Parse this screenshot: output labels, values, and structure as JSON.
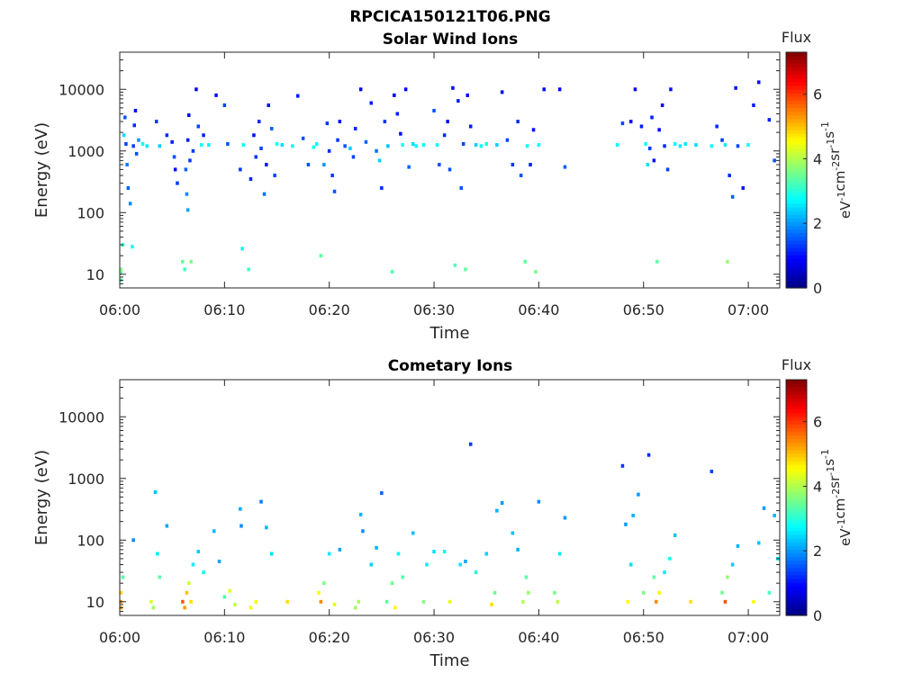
{
  "figure": {
    "title": "RPCICA150121T06.PNG"
  },
  "chart_data": [
    {
      "type": "heatmap",
      "title": "Solar Wind Ions",
      "xlabel": "Time",
      "ylabel": "Energy (eV)",
      "x_tick_labels": [
        "06:00",
        "06:10",
        "06:20",
        "06:30",
        "06:40",
        "06:50",
        "07:00"
      ],
      "x_ticks_minutes": [
        0,
        10,
        20,
        30,
        40,
        50,
        60
      ],
      "xlim_minutes": [
        0,
        63
      ],
      "y_scale": "log",
      "y_tick_labels": [
        "10",
        "100",
        "1000",
        "10000"
      ],
      "y_ticks": [
        10,
        100,
        1000,
        10000
      ],
      "ylim": [
        6,
        40000
      ],
      "colorbar": {
        "label": "Flux",
        "units": "eV-1cm-2sr-1s-1",
        "ticks": [
          0,
          2,
          4,
          6
        ],
        "range": [
          0,
          7.3
        ],
        "colormap": "jet"
      },
      "points": [
        [
          0.1,
          10.5,
          3.4
        ],
        [
          0.1,
          8.0,
          3.3
        ],
        [
          0.1,
          12.0,
          3.6
        ],
        [
          0.3,
          30,
          3.0
        ],
        [
          0.4,
          1800,
          2.5
        ],
        [
          0.5,
          3500,
          1.5
        ],
        [
          0.6,
          1300,
          1.4
        ],
        [
          0.7,
          600,
          1.8
        ],
        [
          0.8,
          250,
          1.6
        ],
        [
          1.0,
          140,
          1.9
        ],
        [
          1.2,
          28,
          2.8
        ],
        [
          1.3,
          1200,
          1.3
        ],
        [
          1.4,
          2600,
          1.2
        ],
        [
          1.5,
          4500,
          1.0
        ],
        [
          1.6,
          900,
          1.5
        ],
        [
          1.8,
          1500,
          2.0
        ],
        [
          2.2,
          1300,
          2.8
        ],
        [
          2.6,
          1200,
          2.6
        ],
        [
          3.5,
          3000,
          1.3
        ],
        [
          3.8,
          1200,
          2.4
        ],
        [
          4.5,
          1800,
          1.2
        ],
        [
          5.0,
          1400,
          1.1
        ],
        [
          5.2,
          800,
          1.5
        ],
        [
          5.3,
          500,
          1.0
        ],
        [
          5.5,
          300,
          1.3
        ],
        [
          6.0,
          16,
          3.4
        ],
        [
          6.2,
          12,
          3.2
        ],
        [
          6.3,
          500,
          1.6
        ],
        [
          6.4,
          200,
          1.9
        ],
        [
          6.5,
          110,
          2.1
        ],
        [
          6.5,
          1500,
          1.1
        ],
        [
          6.6,
          3800,
          1.0
        ],
        [
          6.7,
          700,
          1.3
        ],
        [
          6.8,
          16,
          3.6
        ],
        [
          7.0,
          1000,
          1.3
        ],
        [
          7.3,
          10000,
          0.9
        ],
        [
          7.5,
          2500,
          1.4
        ],
        [
          7.8,
          1250,
          2.8
        ],
        [
          8.0,
          1800,
          1.1
        ],
        [
          8.5,
          1250,
          2.6
        ],
        [
          9.2,
          8000,
          1.0
        ],
        [
          10.0,
          5500,
          1.4
        ],
        [
          10.3,
          1300,
          1.5
        ],
        [
          11.5,
          500,
          1.3
        ],
        [
          11.7,
          26,
          2.7
        ],
        [
          11.8,
          1250,
          2.8
        ],
        [
          12.3,
          12,
          3.2
        ],
        [
          12.5,
          350,
          1.2
        ],
        [
          12.8,
          1800,
          1.0
        ],
        [
          13.0,
          800,
          1.3
        ],
        [
          13.3,
          3000,
          1.2
        ],
        [
          13.5,
          1100,
          1.4
        ],
        [
          13.8,
          200,
          1.7
        ],
        [
          14.0,
          600,
          1.1
        ],
        [
          14.2,
          5500,
          1.0
        ],
        [
          14.5,
          2300,
          1.6
        ],
        [
          14.8,
          400,
          1.4
        ],
        [
          15.0,
          1300,
          2.8
        ],
        [
          15.5,
          1250,
          2.5
        ],
        [
          16.5,
          1200,
          2.7
        ],
        [
          17.0,
          7800,
          1.1
        ],
        [
          17.5,
          1600,
          1.5
        ],
        [
          18.0,
          600,
          1.5
        ],
        [
          18.5,
          1150,
          2.9
        ],
        [
          18.8,
          1300,
          2.7
        ],
        [
          19.2,
          20,
          3.4
        ],
        [
          19.5,
          600,
          2.0
        ],
        [
          19.8,
          2800,
          1.3
        ],
        [
          20.0,
          1000,
          1.2
        ],
        [
          20.3,
          400,
          1.3
        ],
        [
          20.5,
          220,
          1.5
        ],
        [
          20.8,
          1500,
          1.3
        ],
        [
          21.0,
          3000,
          1.0
        ],
        [
          21.5,
          1200,
          1.5
        ],
        [
          22.0,
          1100,
          2.4
        ],
        [
          22.3,
          800,
          1.4
        ],
        [
          22.5,
          2300,
          1.2
        ],
        [
          23.0,
          10000,
          0.9
        ],
        [
          23.5,
          1400,
          1.6
        ],
        [
          24.0,
          6000,
          1.1
        ],
        [
          24.5,
          1000,
          1.7
        ],
        [
          24.8,
          700,
          2.4
        ],
        [
          25.0,
          250,
          1.2
        ],
        [
          25.3,
          3000,
          1.3
        ],
        [
          25.6,
          1200,
          2.3
        ],
        [
          26.0,
          11,
          3.3
        ],
        [
          26.2,
          8000,
          0.9
        ],
        [
          26.5,
          4000,
          1.1
        ],
        [
          26.8,
          1900,
          1.0
        ],
        [
          27.0,
          1250,
          2.8
        ],
        [
          27.3,
          10000,
          0.9
        ],
        [
          27.6,
          550,
          1.6
        ],
        [
          28.0,
          1300,
          2.5
        ],
        [
          28.3,
          1200,
          2.7
        ],
        [
          29.0,
          1250,
          2.7
        ],
        [
          30.0,
          4500,
          1.5
        ],
        [
          30.3,
          1250,
          2.7
        ],
        [
          30.5,
          600,
          1.5
        ],
        [
          31.0,
          1800,
          1.2
        ],
        [
          31.3,
          3000,
          1.0
        ],
        [
          31.5,
          500,
          1.5
        ],
        [
          31.8,
          10500,
          1.0
        ],
        [
          32.0,
          14,
          3.3
        ],
        [
          32.3,
          6500,
          1.1
        ],
        [
          32.6,
          250,
          1.5
        ],
        [
          32.8,
          1300,
          1.4
        ],
        [
          33.0,
          12,
          3.4
        ],
        [
          33.2,
          8000,
          0.9
        ],
        [
          33.5,
          2500,
          1.1
        ],
        [
          34.0,
          1250,
          2.4
        ],
        [
          34.5,
          1200,
          2.7
        ],
        [
          35.0,
          1300,
          2.9
        ],
        [
          36.0,
          1250,
          2.4
        ],
        [
          36.5,
          9000,
          1.0
        ],
        [
          37.0,
          1500,
          1.4
        ],
        [
          37.5,
          600,
          1.3
        ],
        [
          38.0,
          3000,
          1.2
        ],
        [
          38.3,
          400,
          1.5
        ],
        [
          38.7,
          16,
          3.4
        ],
        [
          38.9,
          1200,
          2.8
        ],
        [
          39.2,
          600,
          1.1
        ],
        [
          39.5,
          2200,
          1.0
        ],
        [
          39.7,
          11,
          3.6
        ],
        [
          40.0,
          1250,
          2.7
        ],
        [
          40.5,
          10000,
          0.9
        ],
        [
          42.0,
          10000,
          0.9
        ],
        [
          42.5,
          550,
          1.6
        ],
        [
          47.5,
          1250,
          2.7
        ],
        [
          48.0,
          2800,
          1.4
        ],
        [
          48.8,
          3000,
          1.0
        ],
        [
          49.2,
          10000,
          0.9
        ],
        [
          49.8,
          2500,
          1.1
        ],
        [
          50.2,
          1300,
          2.8
        ],
        [
          50.4,
          600,
          2.5
        ],
        [
          50.6,
          1100,
          1.3
        ],
        [
          50.8,
          3500,
          1.1
        ],
        [
          51.0,
          700,
          1.0
        ],
        [
          51.3,
          16,
          3.4
        ],
        [
          51.5,
          2200,
          1.0
        ],
        [
          51.8,
          5500,
          1.0
        ],
        [
          52.0,
          1200,
          1.2
        ],
        [
          52.3,
          500,
          1.4
        ],
        [
          52.6,
          10000,
          1.0
        ],
        [
          53.0,
          1300,
          2.7
        ],
        [
          53.5,
          1200,
          2.6
        ],
        [
          54.0,
          1300,
          2.6
        ],
        [
          55.0,
          1250,
          2.5
        ],
        [
          56.5,
          1200,
          2.7
        ],
        [
          57.0,
          2500,
          1.2
        ],
        [
          57.5,
          1500,
          1.3
        ],
        [
          57.8,
          1250,
          2.6
        ],
        [
          58.0,
          16,
          3.8
        ],
        [
          58.2,
          400,
          1.2
        ],
        [
          58.5,
          180,
          1.6
        ],
        [
          58.8,
          10500,
          1.0
        ],
        [
          59.0,
          1200,
          1.4
        ],
        [
          59.5,
          250,
          1.1
        ],
        [
          60.0,
          1250,
          2.8
        ],
        [
          60.5,
          5500,
          1.1
        ],
        [
          61.0,
          13000,
          1.0
        ],
        [
          62.0,
          3200,
          1.1
        ],
        [
          62.5,
          700,
          1.5
        ]
      ]
    },
    {
      "type": "heatmap",
      "title": "Cometary Ions",
      "xlabel": "Time",
      "ylabel": "Energy (eV)",
      "x_tick_labels": [
        "06:00",
        "06:10",
        "06:20",
        "06:30",
        "06:40",
        "06:50",
        "07:00"
      ],
      "x_ticks_minutes": [
        0,
        10,
        20,
        30,
        40,
        50,
        60
      ],
      "xlim_minutes": [
        0,
        63
      ],
      "y_scale": "log",
      "y_tick_labels": [
        "10",
        "100",
        "1000",
        "10000"
      ],
      "y_ticks": [
        10,
        100,
        1000,
        10000
      ],
      "ylim": [
        6,
        40000
      ],
      "colorbar": {
        "label": "Flux",
        "units": "eV-1cm-2sr-1s-1",
        "ticks": [
          0,
          2,
          4,
          6
        ],
        "range": [
          0,
          7.3
        ],
        "colormap": "jet"
      },
      "points": [
        [
          0.1,
          10,
          5.4
        ],
        [
          0.1,
          8,
          5.2
        ],
        [
          0.1,
          14,
          4.9
        ],
        [
          0.3,
          25,
          3.3
        ],
        [
          1.3,
          100,
          1.9
        ],
        [
          3.0,
          10,
          4.3
        ],
        [
          3.2,
          8,
          3.9
        ],
        [
          3.4,
          600,
          2.3
        ],
        [
          3.6,
          60,
          2.6
        ],
        [
          3.8,
          25,
          3.4
        ],
        [
          4.5,
          170,
          2.1
        ],
        [
          6.0,
          10,
          5.8
        ],
        [
          6.2,
          8,
          5.3
        ],
        [
          6.4,
          14,
          5.0
        ],
        [
          6.6,
          20,
          4.2
        ],
        [
          6.8,
          10,
          4.8
        ],
        [
          7.0,
          40,
          2.6
        ],
        [
          7.5,
          65,
          2.4
        ],
        [
          8.0,
          30,
          2.9
        ],
        [
          9.0,
          140,
          2.2
        ],
        [
          9.5,
          45,
          2.1
        ],
        [
          10.0,
          12,
          3.3
        ],
        [
          10.5,
          15,
          4.4
        ],
        [
          11.0,
          9,
          4.1
        ],
        [
          11.5,
          320,
          2.1
        ],
        [
          11.6,
          170,
          1.9
        ],
        [
          12.5,
          8,
          4.5
        ],
        [
          13.0,
          10,
          4.5
        ],
        [
          13.5,
          420,
          1.8
        ],
        [
          14.0,
          160,
          2.2
        ],
        [
          14.5,
          60,
          2.5
        ],
        [
          16.0,
          10,
          4.8
        ],
        [
          19.0,
          14,
          4.6
        ],
        [
          19.2,
          10,
          5.4
        ],
        [
          19.5,
          20,
          3.6
        ],
        [
          20.0,
          60,
          2.6
        ],
        [
          20.5,
          9,
          4.4
        ],
        [
          21.0,
          70,
          2.1
        ],
        [
          22.5,
          8,
          3.9
        ],
        [
          22.8,
          10,
          4.0
        ],
        [
          23.0,
          260,
          2.2
        ],
        [
          23.2,
          140,
          1.9
        ],
        [
          24.0,
          40,
          2.4
        ],
        [
          24.5,
          75,
          2.2
        ],
        [
          25.0,
          580,
          1.6
        ],
        [
          25.5,
          10,
          3.4
        ],
        [
          26.0,
          20,
          3.5
        ],
        [
          26.3,
          8,
          4.6
        ],
        [
          26.6,
          60,
          2.7
        ],
        [
          27.0,
          25,
          3.3
        ],
        [
          28.0,
          130,
          2.3
        ],
        [
          29.0,
          10,
          3.7
        ],
        [
          29.3,
          40,
          2.6
        ],
        [
          30.0,
          65,
          2.5
        ],
        [
          31.0,
          65,
          2.7
        ],
        [
          31.5,
          10,
          4.4
        ],
        [
          32.5,
          40,
          2.6
        ],
        [
          33.0,
          45,
          2.1
        ],
        [
          33.5,
          3600,
          1.3
        ],
        [
          34.0,
          30,
          3.0
        ],
        [
          35.0,
          60,
          2.4
        ],
        [
          35.5,
          9,
          4.8
        ],
        [
          35.8,
          14,
          3.5
        ],
        [
          36.0,
          300,
          2.2
        ],
        [
          36.5,
          400,
          2.0
        ],
        [
          37.5,
          130,
          2.3
        ],
        [
          38.0,
          70,
          2.2
        ],
        [
          38.5,
          10,
          4.0
        ],
        [
          38.8,
          25,
          3.4
        ],
        [
          39.0,
          14,
          3.8
        ],
        [
          40.0,
          420,
          1.9
        ],
        [
          41.5,
          14,
          3.6
        ],
        [
          41.8,
          10,
          4.1
        ],
        [
          42.0,
          60,
          2.6
        ],
        [
          42.5,
          230,
          2.0
        ],
        [
          48.0,
          1600,
          1.3
        ],
        [
          48.3,
          180,
          2.0
        ],
        [
          48.5,
          10,
          4.6
        ],
        [
          48.8,
          40,
          2.5
        ],
        [
          49.0,
          250,
          2.2
        ],
        [
          49.5,
          550,
          2.0
        ],
        [
          50.0,
          14,
          3.6
        ],
        [
          50.5,
          2400,
          1.2
        ],
        [
          51.0,
          25,
          3.4
        ],
        [
          51.2,
          10,
          5.4
        ],
        [
          51.5,
          14,
          4.6
        ],
        [
          52.0,
          30,
          2.6
        ],
        [
          52.5,
          50,
          2.9
        ],
        [
          53.0,
          120,
          2.3
        ],
        [
          54.5,
          10,
          4.8
        ],
        [
          56.5,
          1300,
          1.4
        ],
        [
          57.5,
          14,
          3.5
        ],
        [
          57.8,
          10,
          5.8
        ],
        [
          58.0,
          25,
          3.8
        ],
        [
          58.5,
          40,
          2.4
        ],
        [
          59.0,
          80,
          2.2
        ],
        [
          60.5,
          10,
          4.6
        ],
        [
          61.0,
          90,
          2.3
        ],
        [
          61.5,
          330,
          2.0
        ],
        [
          62.0,
          14,
          3.2
        ],
        [
          62.5,
          250,
          2.2
        ],
        [
          62.8,
          50,
          2.6
        ]
      ]
    }
  ]
}
